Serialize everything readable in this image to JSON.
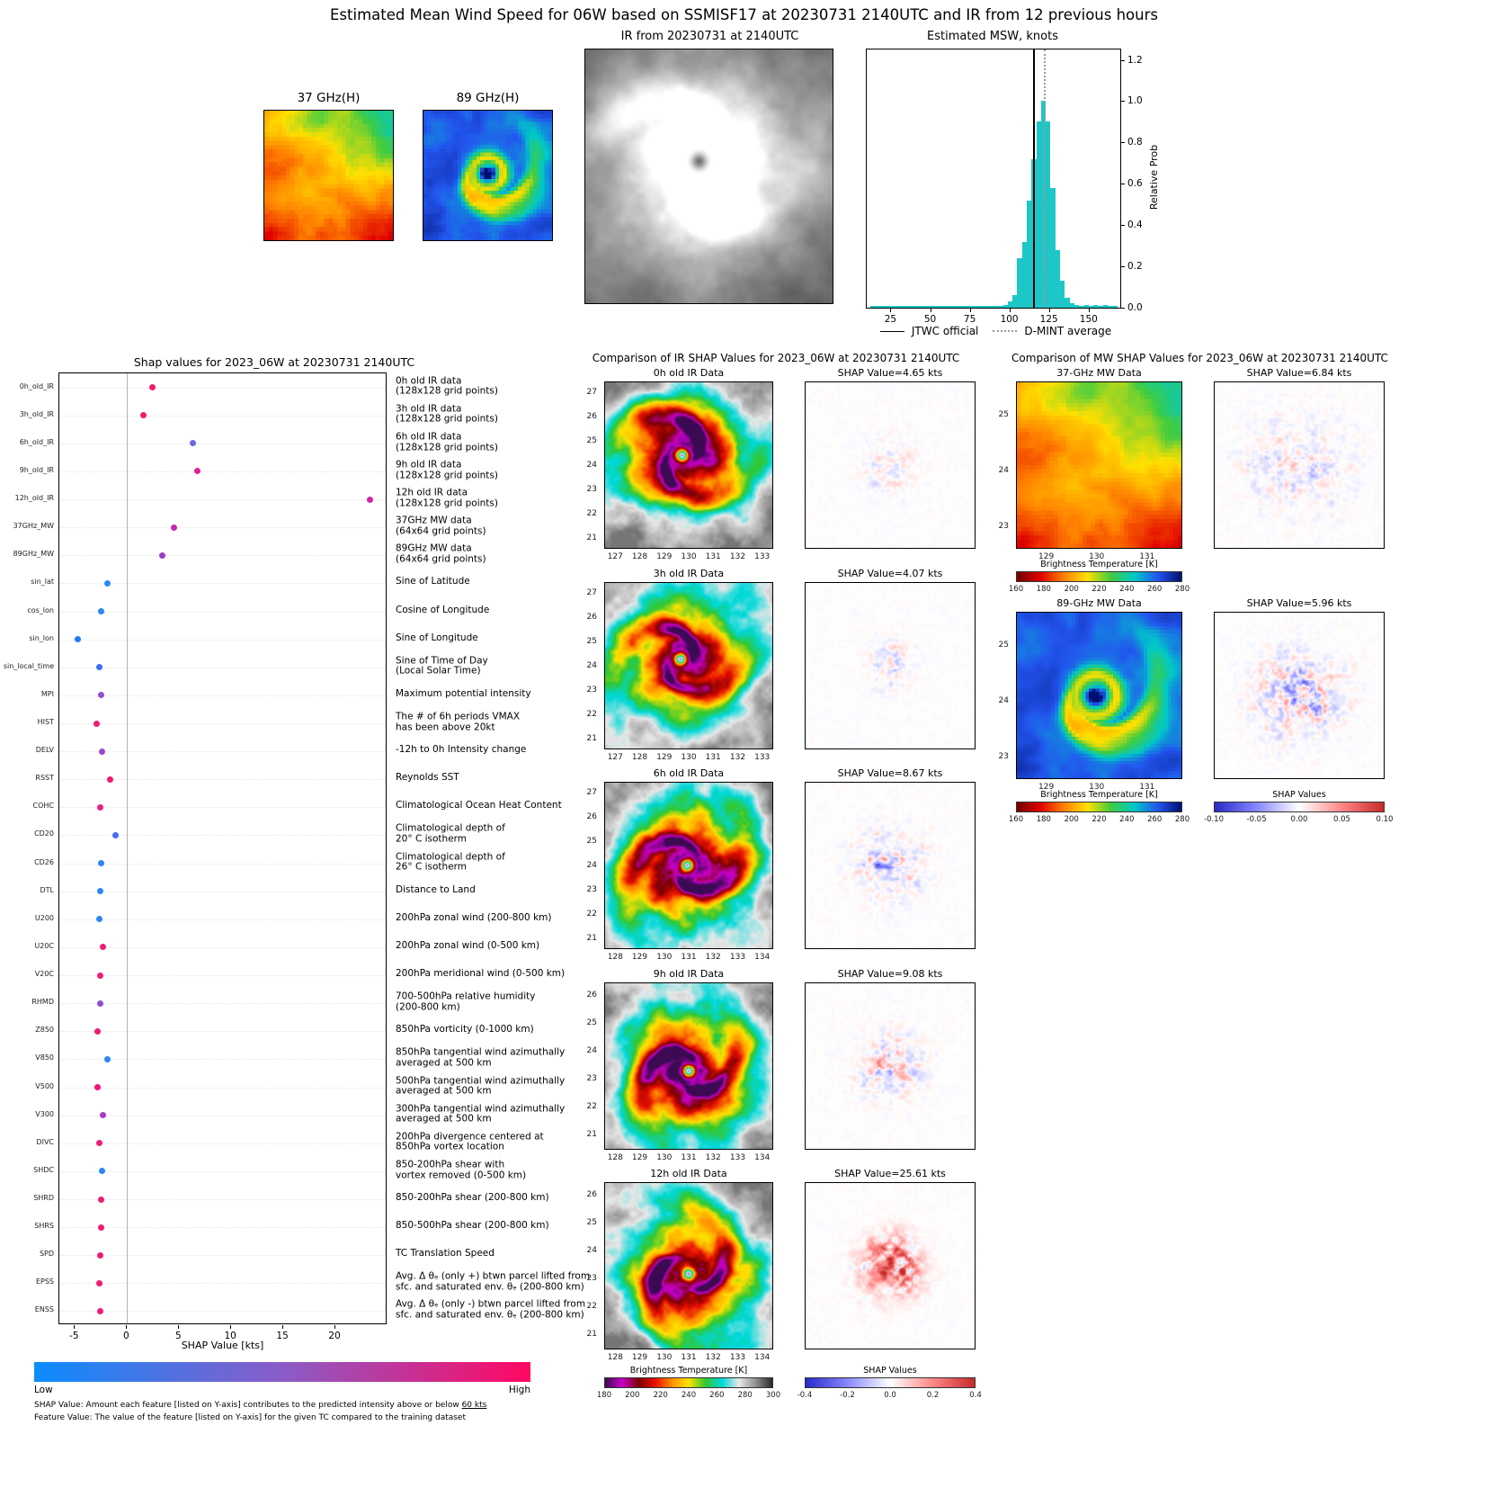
{
  "title": "Estimated Mean Wind Speed for 06W based on SSMISF17 at 20230731 2140UTC and IR from 12 previous hours",
  "top_row": {
    "mw37_thumb_label": "37 GHz(H)",
    "mw89_thumb_label": "89 GHz(H)",
    "ir_panel_title": "IR from 20230731 at 2140UTC",
    "hist_title": "Estimated MSW, knots",
    "hist_ylabel": "Relative Prob",
    "legend_jtwc": "JTWC official",
    "legend_dmint": "D-MINT average"
  },
  "shap_panel": {
    "title": "Shap values for 2023_06W at 20230731 2140UTC",
    "xlabel": "SHAP Value [kts]",
    "colorbar_low": "Low",
    "colorbar_high": "High",
    "footnote1_prefix": "SHAP Value: Amount each feature [listed on Y-axis] contributes to the predicted intensity above or below ",
    "footnote1_underlined": "60 kts",
    "footnote2": "Feature Value: The value of the feature [listed on Y-axis] for the given TC compared to the training dataset"
  },
  "ir_column": {
    "title": "Comparison of IR SHAP Values for 2023_06W at 20230731 2140UTC",
    "rows": [
      {
        "data_title": "0h old IR Data",
        "shap_title": "SHAP Value=4.65 kts",
        "xticks": [
          127,
          128,
          129,
          130,
          131,
          132,
          133
        ],
        "xrange": [
          126.55,
          133.45
        ],
        "yticks": [
          27,
          26,
          25,
          24,
          23,
          22,
          21
        ],
        "yrange": [
          27.45,
          20.55
        ]
      },
      {
        "data_title": "3h old IR Data",
        "shap_title": "SHAP Value=4.07 kts",
        "xticks": [
          127,
          128,
          129,
          130,
          131,
          132,
          133
        ],
        "xrange": [
          126.55,
          133.45
        ],
        "yticks": [
          27,
          26,
          25,
          24,
          23,
          22,
          21
        ],
        "yrange": [
          27.45,
          20.55
        ]
      },
      {
        "data_title": "6h old IR Data",
        "shap_title": "SHAP Value=8.67 kts",
        "xticks": [
          128,
          129,
          130,
          131,
          132,
          133,
          134
        ],
        "xrange": [
          127.55,
          134.45
        ],
        "yticks": [
          27,
          26,
          25,
          24,
          23,
          22,
          21
        ],
        "yrange": [
          27.45,
          20.55
        ]
      },
      {
        "data_title": "9h old IR Data",
        "shap_title": "SHAP Value=9.08 kts",
        "xticks": [
          128,
          129,
          130,
          131,
          132,
          133,
          134
        ],
        "xrange": [
          127.55,
          134.45
        ],
        "yticks": [
          26,
          25,
          24,
          23,
          22,
          21
        ],
        "yrange": [
          26.45,
          20.45
        ]
      },
      {
        "data_title": "12h old IR Data",
        "shap_title": "SHAP Value=25.61 kts",
        "xticks": [
          128,
          129,
          130,
          131,
          132,
          133,
          134
        ],
        "xrange": [
          127.55,
          134.45
        ],
        "yticks": [
          26,
          25,
          24,
          23,
          22,
          21
        ],
        "yrange": [
          26.45,
          20.45
        ]
      }
    ],
    "bt_colorbar_label": "Brightness Temperature [K]",
    "bt_ticks": [
      "180",
      "200",
      "220",
      "240",
      "260",
      "280",
      "300"
    ],
    "shap_colorbar_label": "SHAP Values",
    "shap_ticks": [
      "-0.4",
      "-0.2",
      "0.0",
      "0.2",
      "0.4"
    ]
  },
  "mw_column": {
    "title": "Comparison of MW SHAP Values for 2023_06W at 20230731 2140UTC",
    "panels": [
      {
        "title": "37-GHz MW Data",
        "shap_title": "SHAP Value=6.84 kts",
        "xticks": [
          129,
          130,
          131
        ],
        "xrange": [
          128.4,
          131.7
        ],
        "yticks": [
          25,
          24,
          23
        ],
        "yrange": [
          25.6,
          22.6
        ]
      },
      {
        "title": "89-GHz MW Data",
        "shap_title": "SHAP Value=5.96 kts",
        "xticks": [
          129,
          130,
          131
        ],
        "xrange": [
          128.4,
          131.7
        ],
        "yticks": [
          25,
          24,
          23
        ],
        "yrange": [
          25.6,
          22.6
        ]
      }
    ],
    "bt_colorbar_label": "Brightness Temperature [K]",
    "bt_ticks": [
      "160",
      "180",
      "200",
      "220",
      "240",
      "260",
      "280"
    ],
    "shap_colorbar_label": "SHAP Values",
    "shap_ticks": [
      "-0.10",
      "-0.05",
      "0.00",
      "0.05",
      "0.10"
    ]
  },
  "colormaps": {
    "ir_bt": [
      "#3b0a52",
      "#c800c8",
      "#7a0000",
      "#e81000",
      "#ff9000",
      "#ffe200",
      "#30c830",
      "#00d8d8",
      "#e8e8e8",
      "#909090",
      "#282828"
    ],
    "mw_bt": [
      "#700000",
      "#e00000",
      "#ff8000",
      "#ffe000",
      "#40cc40",
      "#00c8c8",
      "#2255ee",
      "#001070"
    ],
    "shap_bwr": [
      "#2929c8",
      "#8888ff",
      "#ffffff",
      "#ff8888",
      "#c82929"
    ],
    "feature_value": [
      "#0b8cfe",
      "#8a5cc8",
      "#ff0862"
    ]
  },
  "chart_data": [
    {
      "id": "msw_histogram",
      "type": "bar",
      "title": "Estimated MSW, knots",
      "xlabel": "",
      "ylabel": "Relative Prob",
      "xlim": [
        10,
        170
      ],
      "ylim": [
        0,
        1.25
      ],
      "xticks": [
        25,
        50,
        75,
        100,
        125,
        150
      ],
      "yticks": [
        0.0,
        0.2,
        0.4,
        0.6,
        0.8,
        1.0,
        1.2
      ],
      "bin_width": 3,
      "bins": [
        [
          96,
          0.012
        ],
        [
          99,
          0.03
        ],
        [
          102,
          0.06
        ],
        [
          105,
          0.24
        ],
        [
          108,
          0.32
        ],
        [
          111,
          0.52
        ],
        [
          114,
          0.72
        ],
        [
          117,
          0.9
        ],
        [
          120,
          1.0
        ],
        [
          123,
          0.9
        ],
        [
          126,
          0.58
        ],
        [
          129,
          0.28
        ],
        [
          132,
          0.13
        ],
        [
          135,
          0.05
        ],
        [
          138,
          0.02
        ],
        [
          141,
          0.012
        ],
        [
          147,
          0.015
        ],
        [
          153,
          0.012
        ],
        [
          159,
          0.015
        ],
        [
          162,
          0.01
        ]
      ],
      "baseline": {
        "from": 12,
        "to": 168,
        "height": 0.008
      },
      "bar_color": "#1dc7c7",
      "jtwc_official_kts": 115,
      "dmint_average_kts": 122,
      "legend": [
        "JTWC official",
        "D-MINT average"
      ]
    },
    {
      "id": "shap_features",
      "type": "scatter",
      "title": "Shap values for 2023_06W at 20230731 2140UTC",
      "xlabel": "SHAP Value [kts]",
      "xlim": [
        -6.5,
        25
      ],
      "xticks": [
        -5,
        0,
        5,
        10,
        15,
        20
      ],
      "features": [
        {
          "name": "0h_old_IR",
          "value": 2.4,
          "color": "#f31b6e",
          "desc": "0h old IR data\n(128x128 grid points)"
        },
        {
          "name": "3h_old_IR",
          "value": 1.6,
          "color": "#f31b6e",
          "desc": "3h old IR data\n(128x128 grid points)"
        },
        {
          "name": "6h_old_IR",
          "value": 6.3,
          "color": "#6a6ae0",
          "desc": "6h old IR data\n(128x128 grid points)"
        },
        {
          "name": "9h_old_IR",
          "value": 6.7,
          "color": "#e0219c",
          "desc": "9h old IR data\n(128x128 grid points)"
        },
        {
          "name": "12h_old_IR",
          "value": 23.3,
          "color": "#d226a6",
          "desc": "12h old IR data\n(128x128 grid points)"
        },
        {
          "name": "37GHz_MW",
          "value": 4.5,
          "color": "#c22bb4",
          "desc": "37GHz MW data\n(64x64 grid points)"
        },
        {
          "name": "89GHz_MW",
          "value": 3.4,
          "color": "#9b3ccc",
          "desc": "89GHz MW data\n(64x64 grid points)"
        },
        {
          "name": "sin_lat",
          "value": -1.9,
          "color": "#2e86f5",
          "desc": "Sine of Latitude"
        },
        {
          "name": "cos_lon",
          "value": -2.5,
          "color": "#2e86f5",
          "desc": "Cosine of Longitude"
        },
        {
          "name": "sin_lon",
          "value": -4.7,
          "color": "#1f7df7",
          "desc": "Sine of Longitude"
        },
        {
          "name": "sin_local_time",
          "value": -2.7,
          "color": "#3f6ef0",
          "desc": "Sine of Time of Day\n(Local Solar Time)"
        },
        {
          "name": "MPI",
          "value": -2.5,
          "color": "#8e4fd0",
          "desc": "Maximum potential intensity"
        },
        {
          "name": "HIST",
          "value": -2.9,
          "color": "#ef1c74",
          "desc": "The # of 6h periods VMAX\nhas been above 20kt"
        },
        {
          "name": "DELV",
          "value": -2.4,
          "color": "#9a45cc",
          "desc": "-12h to 0h Intensity change"
        },
        {
          "name": "RSST",
          "value": -1.6,
          "color": "#f31b6e",
          "desc": "Reynolds SST"
        },
        {
          "name": "COHC",
          "value": -2.6,
          "color": "#ec2080",
          "desc": "Climatological Ocean Heat Content"
        },
        {
          "name": "CD20",
          "value": -1.1,
          "color": "#4a6cf0",
          "desc": "Climatological depth of\n20° C isotherm"
        },
        {
          "name": "CD26",
          "value": -2.5,
          "color": "#2e86f5",
          "desc": "Climatological depth of\n26° C isotherm"
        },
        {
          "name": "DTL",
          "value": -2.6,
          "color": "#2e86f5",
          "desc": "Distance to Land"
        },
        {
          "name": "U200",
          "value": -2.7,
          "color": "#2e86f5",
          "desc": "200hPa zonal wind (200-800 km)"
        },
        {
          "name": "U20C",
          "value": -2.3,
          "color": "#ef1c74",
          "desc": "200hPa zonal wind (0-500 km)"
        },
        {
          "name": "V20C",
          "value": -2.6,
          "color": "#ef1c74",
          "desc": "200hPa meridional wind (0-500 km)"
        },
        {
          "name": "RHMD",
          "value": -2.6,
          "color": "#8e4fd0",
          "desc": "700-500hPa relative humidity\n(200-800 km)"
        },
        {
          "name": "Z850",
          "value": -2.8,
          "color": "#ef1c74",
          "desc": "850hPa vorticity (0-1000 km)"
        },
        {
          "name": "V850",
          "value": -1.9,
          "color": "#2e86f5",
          "desc": "850hPa tangential wind azimuthally\naveraged at 500 km"
        },
        {
          "name": "V500",
          "value": -2.8,
          "color": "#f3117c",
          "desc": "500hPa tangential wind azimuthally\naveraged at 500 km"
        },
        {
          "name": "V300",
          "value": -2.3,
          "color": "#a63cc8",
          "desc": "300hPa tangential wind azimuthally\naveraged at 500 km"
        },
        {
          "name": "DIVC",
          "value": -2.7,
          "color": "#ef1c74",
          "desc": "200hPa divergence centered at\n850hPa vortex location"
        },
        {
          "name": "SHDC",
          "value": -2.4,
          "color": "#2e86f5",
          "desc": "850-200hPa shear with\nvortex removed (0-500 km)"
        },
        {
          "name": "SHRD",
          "value": -2.5,
          "color": "#ef1c74",
          "desc": "850-200hPa shear (200-800 km)"
        },
        {
          "name": "SHRS",
          "value": -2.5,
          "color": "#ef1c74",
          "desc": "850-500hPa shear (200-800 km)"
        },
        {
          "name": "SPD",
          "value": -2.6,
          "color": "#ef1c74",
          "desc": "TC Translation Speed"
        },
        {
          "name": "EPSS",
          "value": -2.7,
          "color": "#ef1c74",
          "desc": "Avg. Δ θₑ (only +) btwn parcel lifted from\nsfc. and saturated env. θₑ (200-800 km)"
        },
        {
          "name": "ENSS",
          "value": -2.6,
          "color": "#ef1c74",
          "desc": "Avg. Δ θₑ (only -) btwn parcel lifted from\nsfc. and saturated env. θₑ (200-800 km)"
        }
      ]
    },
    {
      "id": "ir_shap_panels",
      "type": "heatmap",
      "title": "Comparison of IR SHAP Values for 2023_06W at 20230731 2140UTC",
      "rows": [
        {
          "label": "0h old IR Data",
          "shap_kts": 4.65
        },
        {
          "label": "3h old IR Data",
          "shap_kts": 4.07
        },
        {
          "label": "6h old IR Data",
          "shap_kts": 8.67
        },
        {
          "label": "9h old IR Data",
          "shap_kts": 9.08
        },
        {
          "label": "12h old IR Data",
          "shap_kts": 25.61
        }
      ]
    },
    {
      "id": "mw_shap_panels",
      "type": "heatmap",
      "title": "Comparison of MW SHAP Values for 2023_06W at 20230731 2140UTC",
      "rows": [
        {
          "label": "37-GHz MW Data",
          "shap_kts": 6.84
        },
        {
          "label": "89-GHz MW Data",
          "shap_kts": 5.96
        }
      ]
    }
  ]
}
